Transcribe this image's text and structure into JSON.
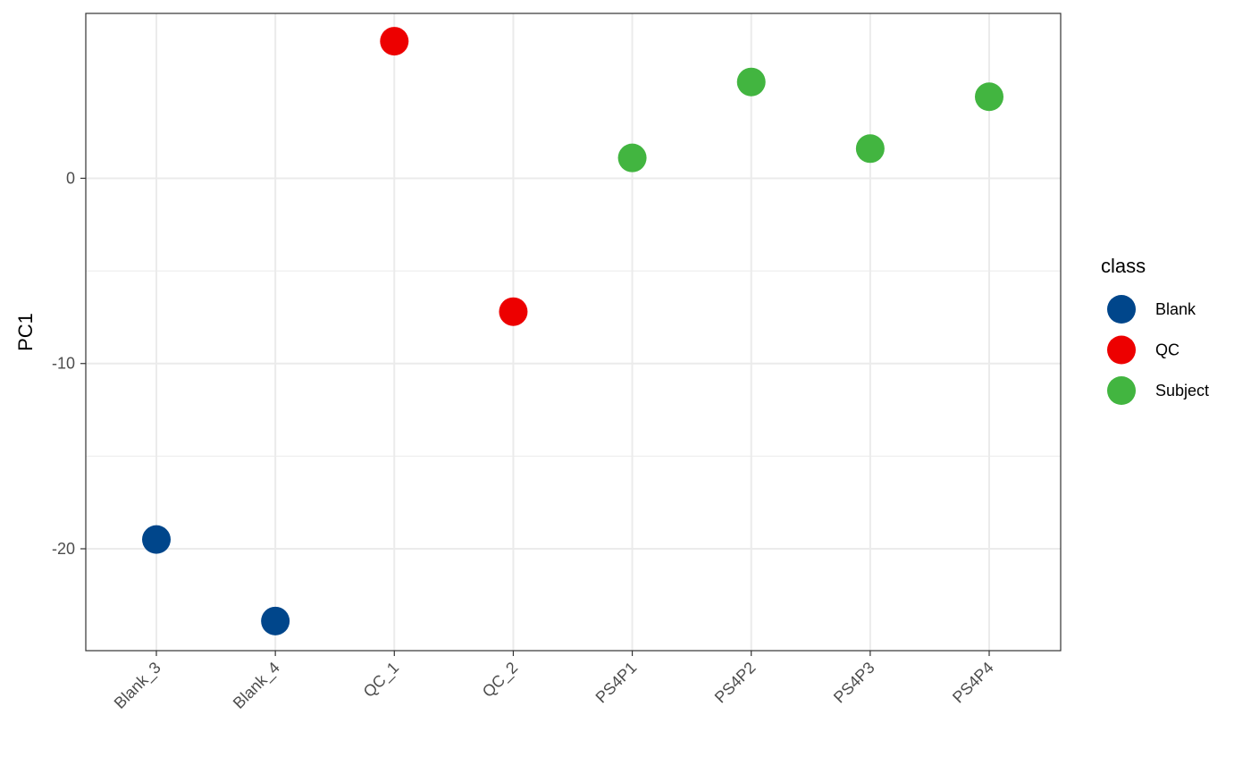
{
  "chart_data": {
    "type": "scatter",
    "title": "",
    "xlabel": "",
    "ylabel": "PC1",
    "categories": [
      "Blank_3",
      "Blank_4",
      "QC_1",
      "QC_2",
      "PS4P1",
      "PS4P2",
      "PS4P3",
      "PS4P4"
    ],
    "ylim": [
      -25.5,
      8.9
    ],
    "yticks": [
      0,
      -10,
      -20
    ],
    "ytick_labels": [
      "0",
      "-10",
      "-20"
    ],
    "grid": true,
    "legend": {
      "title": "class",
      "placement": "right",
      "entries": [
        {
          "label": "Blank",
          "color": "#00468B"
        },
        {
          "label": "QC",
          "color": "#ED0000"
        },
        {
          "label": "Subject",
          "color": "#42B540"
        }
      ]
    },
    "points": [
      {
        "category": "Blank_3",
        "value": -19.5,
        "class": "Blank"
      },
      {
        "category": "Blank_4",
        "value": -23.9,
        "class": "Blank"
      },
      {
        "category": "QC_1",
        "value": 7.4,
        "class": "QC"
      },
      {
        "category": "QC_2",
        "value": -7.2,
        "class": "QC"
      },
      {
        "category": "PS4P1",
        "value": 1.1,
        "class": "Subject"
      },
      {
        "category": "PS4P2",
        "value": 5.2,
        "class": "Subject"
      },
      {
        "category": "PS4P3",
        "value": 1.6,
        "class": "Subject"
      },
      {
        "category": "PS4P4",
        "value": 4.4,
        "class": "Subject"
      }
    ]
  }
}
